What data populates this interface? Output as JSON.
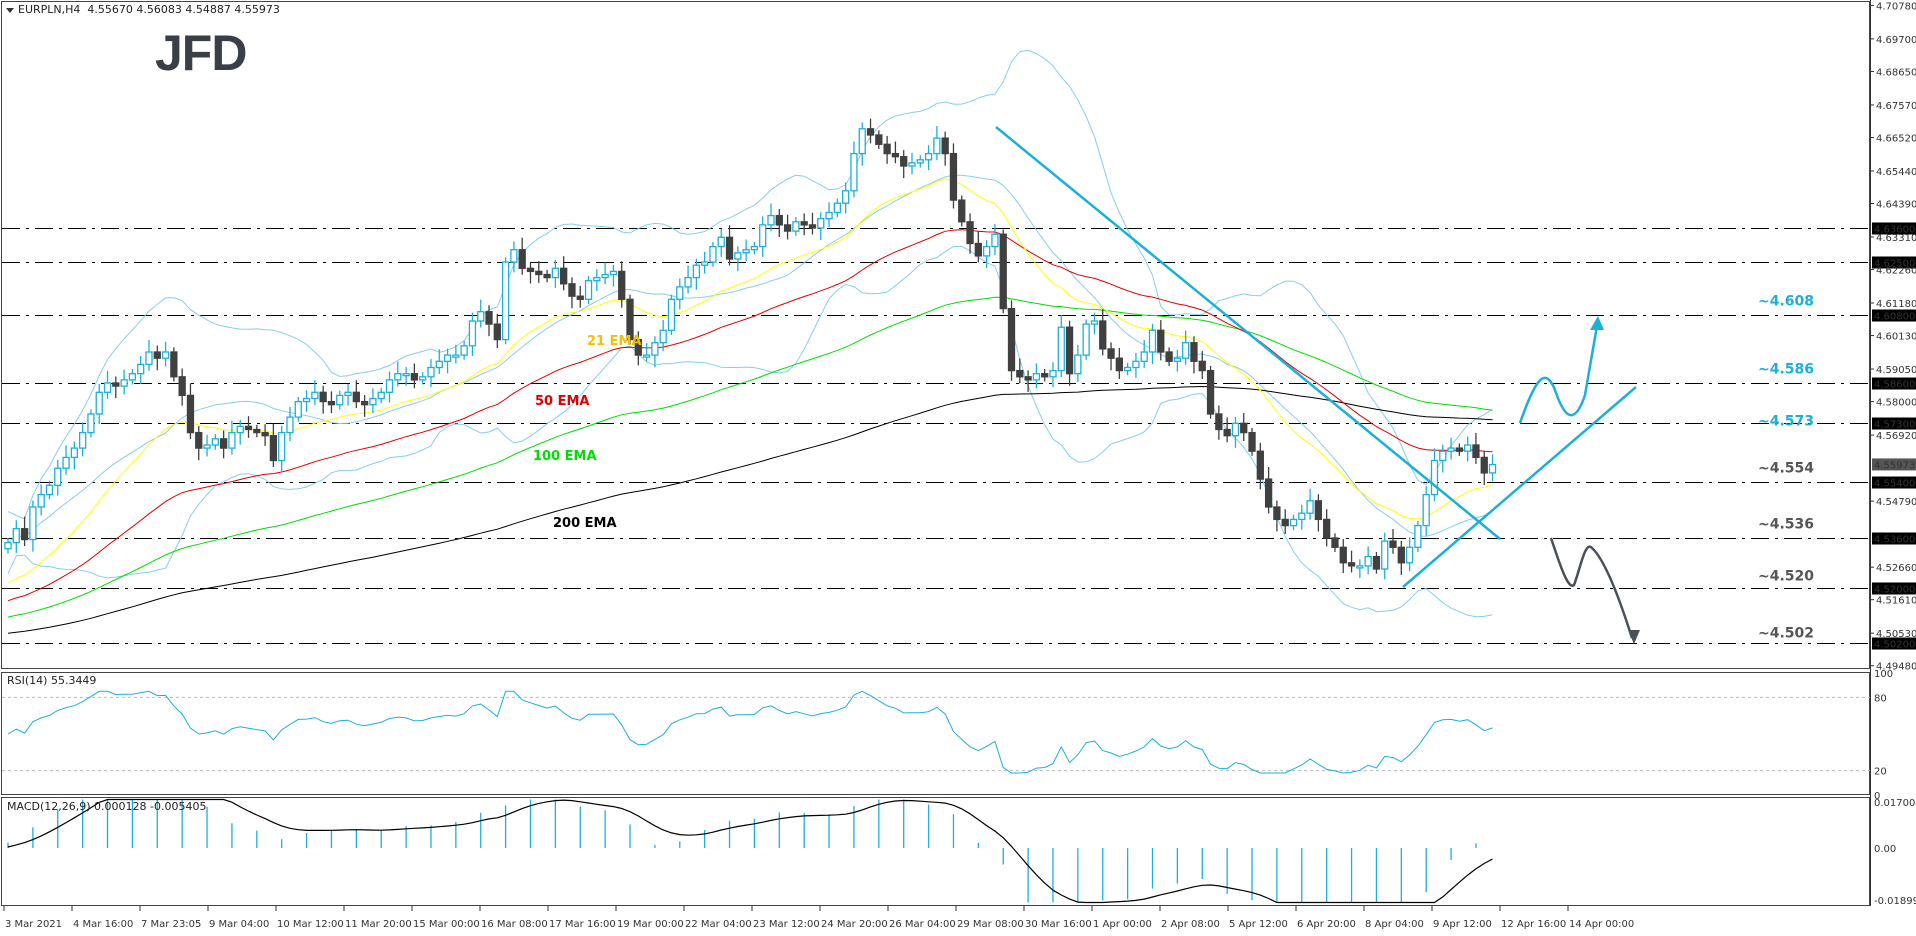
{
  "header": {
    "symbol": "EURPLN,H4",
    "ohlc": "4.55670 4.56083 4.54887 4.55973",
    "logo": "JFD"
  },
  "colors": {
    "bull": "#1cb0d8",
    "bear": "#404040",
    "ema21": "#ffff00",
    "ema50": "#e00000",
    "ema100": "#00dd00",
    "ema200": "#000000",
    "bollinger": "#87ceeb",
    "trend": "#1cb0d8",
    "label_cyan": "#1cb0d8",
    "label_gray": "#555555",
    "rsi": "#1cb0d8",
    "macd_hist": "#1cb0d8",
    "macd_signal": "#000000"
  },
  "chart_data": [
    {
      "type": "candlestick",
      "title": "EURPLN,H4 4.55670 4.56083 4.54887 4.55973",
      "xlabel": "",
      "ylabel": "",
      "ylim": [
        4.4948,
        4.7078
      ],
      "x_tick_labels": [
        "3 Mar 2021",
        "4 Mar 16:00",
        "7 Mar 23:05",
        "9 Mar 04:00",
        "10 Mar 12:00",
        "11 Mar 20:00",
        "15 Mar 00:00",
        "16 Mar 08:00",
        "17 Mar 16:00",
        "19 Mar 00:00",
        "22 Mar 04:00",
        "23 Mar 12:00",
        "24 Mar 20:00",
        "26 Mar 04:00",
        "29 Mar 08:00",
        "30 Mar 16:00",
        "1 Apr 00:00",
        "2 Apr 08:00",
        "5 Apr 12:00",
        "6 Apr 20:00",
        "8 Apr 04:00",
        "9 Apr 12:00",
        "12 Apr 16:00",
        "14 Apr 00:00"
      ],
      "y_tick_labels": [
        "4.70780",
        "4.69700",
        "4.68650",
        "4.67570",
        "4.66520",
        "4.65440",
        "4.64390",
        "4.63310",
        "4.62260",
        "4.61180",
        "4.60130",
        "4.59050",
        "4.58000",
        "4.56920",
        "4.54790",
        "4.52660",
        "4.51610",
        "4.50530",
        "4.49480"
      ],
      "current_price": "4.55973",
      "horizontal_levels": [
        {
          "price": 4.636,
          "axis_label": "4.63600",
          "annotation": ""
        },
        {
          "price": 4.625,
          "axis_label": "4.62500",
          "annotation": ""
        },
        {
          "price": 4.608,
          "axis_label": "4.60800",
          "annotation": "~4.608",
          "color": "cyan"
        },
        {
          "price": 4.586,
          "axis_label": "4.58600",
          "annotation": "~4.586",
          "color": "cyan"
        },
        {
          "price": 4.573,
          "axis_label": "4.57300",
          "annotation": "~4.573",
          "color": "cyan"
        },
        {
          "price": 4.554,
          "axis_label": "4.55400",
          "annotation": "~4.554",
          "color": "gray"
        },
        {
          "price": 4.536,
          "axis_label": "4.53600",
          "annotation": "~4.536",
          "color": "gray"
        },
        {
          "price": 4.52,
          "axis_label": "4.52000",
          "annotation": "~4.520",
          "color": "gray"
        },
        {
          "price": 4.502,
          "axis_label": "4.50200",
          "annotation": "~4.502",
          "color": "gray"
        }
      ],
      "series_labels": [
        "21 EMA",
        "50 EMA",
        "100 EMA",
        "200 EMA"
      ],
      "closes": [
        4.5345,
        4.539,
        4.5355,
        4.546,
        4.55,
        4.553,
        4.5585,
        4.562,
        4.565,
        4.57,
        4.576,
        4.583,
        4.586,
        4.585,
        4.587,
        4.589,
        4.592,
        4.596,
        4.594,
        4.596,
        4.588,
        4.582,
        4.57,
        4.565,
        4.566,
        4.568,
        4.565,
        4.57,
        4.572,
        4.571,
        4.57,
        4.569,
        4.561,
        4.57,
        4.575,
        4.58,
        4.581,
        4.583,
        4.58,
        4.579,
        4.582,
        4.583,
        4.58,
        4.579,
        4.581,
        4.583,
        4.587,
        4.589,
        4.589,
        4.587,
        4.588,
        4.591,
        4.593,
        4.595,
        4.595,
        4.598,
        4.606,
        4.609,
        4.605,
        4.6,
        4.625,
        4.629,
        4.623,
        4.622,
        4.621,
        4.62,
        4.623,
        4.618,
        4.614,
        4.613,
        4.619,
        4.62,
        4.621,
        4.622,
        4.613,
        4.6,
        4.595,
        4.595,
        4.599,
        4.603,
        4.613,
        4.617,
        4.62,
        4.624,
        4.625,
        4.63,
        4.633,
        4.626,
        4.628,
        4.629,
        4.63,
        4.637,
        4.64,
        4.637,
        4.635,
        4.638,
        4.637,
        4.636,
        4.639,
        4.641,
        4.644,
        4.648,
        4.66,
        4.668,
        4.666,
        4.663,
        4.66,
        4.659,
        4.656,
        4.657,
        4.658,
        4.66,
        4.665,
        4.66,
        4.645,
        4.638,
        4.631,
        4.627,
        4.63,
        4.634,
        4.61,
        4.59,
        4.588,
        4.587,
        4.589,
        4.588,
        4.59,
        4.604,
        4.589,
        4.595,
        4.605,
        4.606,
        4.597,
        4.594,
        4.59,
        4.591,
        4.593,
        4.596,
        4.603,
        4.596,
        4.593,
        4.594,
        4.599,
        4.593,
        4.59,
        4.576,
        4.571,
        4.569,
        4.573,
        4.57,
        4.564,
        4.555,
        4.546,
        4.542,
        4.54,
        4.542,
        4.544,
        4.548,
        4.542,
        4.536,
        4.533,
        4.528,
        4.527,
        4.527,
        4.53,
        4.526,
        4.535,
        4.533,
        4.528,
        4.533,
        4.54,
        4.55,
        4.561,
        4.564,
        4.565,
        4.564,
        4.566,
        4.562,
        4.557,
        4.5597
      ]
    },
    {
      "type": "line",
      "title": "RSI(14) 55.3449",
      "ylim": [
        0,
        100
      ],
      "levels": [
        80,
        20
      ],
      "y_tick_labels": [
        "100",
        "80",
        "20",
        "0"
      ]
    },
    {
      "type": "bar",
      "title": "MACD(12,26,9) 0.000128 -0.005405",
      "ylim": [
        -0.018997,
        0.017004
      ],
      "y_tick_labels": [
        "0.017004",
        "0.00",
        "-0.018997"
      ]
    }
  ],
  "annotations": {
    "ema21": "21 EMA",
    "ema50": "50 EMA",
    "ema100": "100 EMA",
    "ema200": "200 EMA"
  },
  "rsi": {
    "label": "RSI(14) 55.3449"
  },
  "macd": {
    "label": "MACD(12,26,9) 0.000128 -0.005405"
  }
}
